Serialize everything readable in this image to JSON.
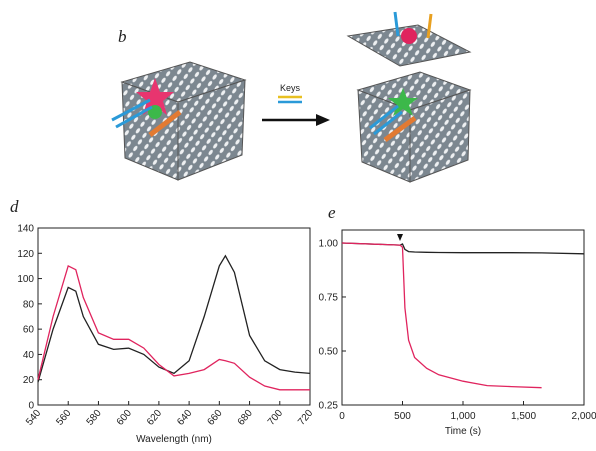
{
  "diagram": {
    "panel_label": "b",
    "arrow_label": "Keys"
  },
  "chart_data": [
    {
      "type": "line",
      "panel_label": "d",
      "xlabel": "Wavelength (nm)",
      "x": [
        540,
        550,
        560,
        565,
        570,
        580,
        590,
        600,
        610,
        620,
        630,
        640,
        650,
        660,
        664,
        670,
        680,
        690,
        700,
        710,
        720
      ],
      "series": [
        {
          "color": "#222222",
          "values": [
            18,
            60,
            93,
            90,
            70,
            48,
            44,
            45,
            40,
            30,
            25,
            35,
            70,
            110,
            118,
            105,
            55,
            35,
            28,
            26,
            25
          ]
        },
        {
          "color": "#e0245e",
          "values": [
            20,
            70,
            110,
            107,
            85,
            57,
            52,
            52,
            45,
            32,
            23,
            25,
            28,
            36,
            35,
            33,
            22,
            15,
            12,
            12,
            12
          ]
        }
      ],
      "xlim": [
        540,
        720
      ],
      "xticks": [
        540,
        560,
        580,
        600,
        620,
        640,
        660,
        680,
        700,
        720
      ],
      "ylim": [
        0,
        140
      ],
      "yticks": [
        0,
        20,
        40,
        60,
        80,
        100,
        120,
        140
      ]
    },
    {
      "type": "line",
      "panel_label": "e",
      "xlabel": "Time (s)",
      "x": [
        0,
        480,
        500,
        520,
        550,
        600,
        700,
        800,
        1000,
        1200,
        1400,
        1650,
        2000
      ],
      "series": [
        {
          "color": "#222222",
          "values": [
            1.0,
            0.99,
            0.995,
            0.97,
            0.96,
            0.958,
            0.957,
            0.956,
            0.955,
            0.955,
            0.955,
            0.954,
            0.95
          ]
        },
        {
          "color": "#e0245e",
          "values": [
            1.0,
            0.99,
            0.98,
            0.7,
            0.55,
            0.47,
            0.42,
            0.39,
            0.36,
            0.34,
            0.335,
            0.33,
            null
          ]
        }
      ],
      "xlim": [
        0,
        2000
      ],
      "xticks": [
        0,
        500,
        {
          "value": 1000,
          "label": "1,000"
        },
        {
          "value": 1500,
          "label": "1,500"
        },
        {
          "value": 2000,
          "label": "2,000"
        }
      ],
      "ylim": [
        0.25,
        1.06
      ],
      "yticks": [
        0.25,
        {
          "value": 0.5,
          "label": "0.50"
        },
        0.75,
        {
          "value": 1.0,
          "label": "1.00"
        }
      ]
    }
  ]
}
